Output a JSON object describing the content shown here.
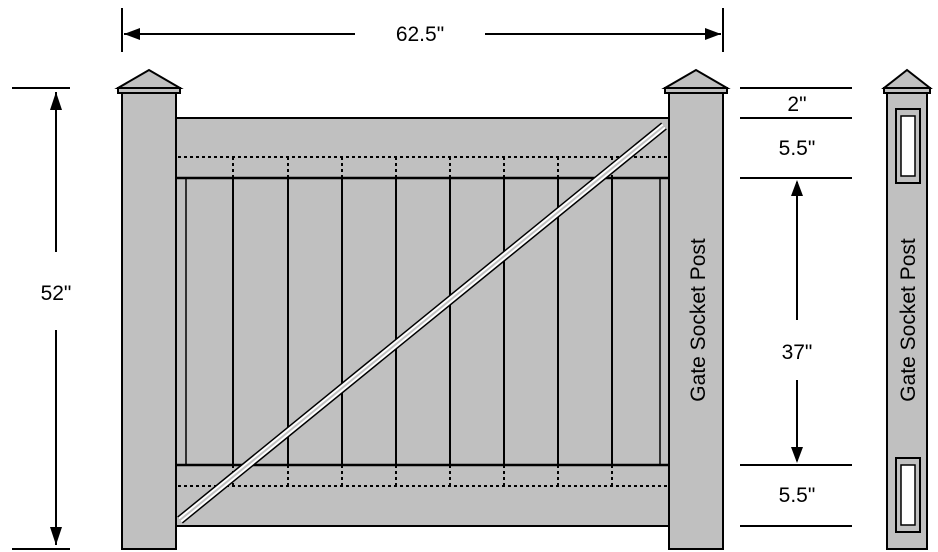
{
  "dimensions": {
    "width": "62.5\"",
    "height": "52\"",
    "top_rail_gap": "2\"",
    "top_rail": "5.5\"",
    "picket_span": "37\"",
    "bottom_rail": "5.5\""
  },
  "labels": {
    "gate_post": "Gate Socket Post",
    "side_post": "Gate Socket Post"
  },
  "colors": {
    "panel": "#c0c0c0",
    "line": "#000000",
    "brace": "#ffffff",
    "background": "#ffffff"
  }
}
